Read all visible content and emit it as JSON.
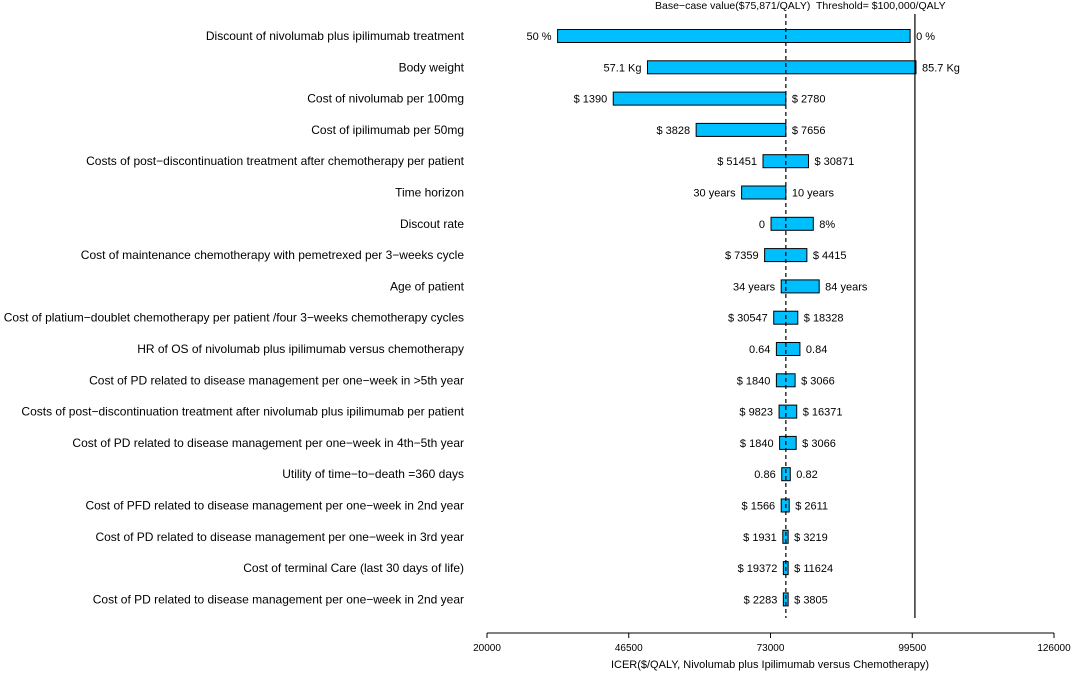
{
  "chart_data": {
    "type": "tornado",
    "xlabel": "ICER($/QALY, Nivolumab plus Ipilimumab versus Chemotherapy)",
    "xlim": [
      20000,
      126000
    ],
    "xticks": [
      20000,
      46500,
      73000,
      99500,
      126000
    ],
    "xtick_labels": [
      "20000",
      "46500",
      "73000",
      "99500",
      "126000"
    ],
    "base_case": {
      "value": 75871,
      "label": "Base−case value($75,871/QALY)"
    },
    "threshold": {
      "value": 100000,
      "label": "Threshold= $100,000/QALY"
    },
    "colors": {
      "bar": "#00BFFF",
      "bar_stroke": "#000000",
      "line": "#000000"
    },
    "parameters": [
      {
        "label": "Discount of nivolumab plus ipilimumab treatment",
        "low_value": 33200,
        "high_value": 99100,
        "left_label": "50 %",
        "right_label": "0 %"
      },
      {
        "label": "Body weight",
        "low_value": 50000,
        "high_value": 100200,
        "left_label": "57.1 Kg",
        "right_label": "85.7 Kg"
      },
      {
        "label": "Cost of nivolumab per 100mg",
        "low_value": 43600,
        "high_value": 75871,
        "left_label": "$ 1390",
        "right_label": "$ 2780"
      },
      {
        "label": "Cost of ipilimumab per 50mg",
        "low_value": 59100,
        "high_value": 75871,
        "left_label": "$ 3828",
        "right_label": "$ 7656"
      },
      {
        "label": "Costs of post−discontinuation treatment after chemotherapy per patient",
        "low_value": 71600,
        "high_value": 80100,
        "left_label": "$ 51451",
        "right_label": "$ 30871"
      },
      {
        "label": "Time horizon",
        "low_value": 67600,
        "high_value": 75871,
        "left_label": "30 years",
        "right_label": "10 years"
      },
      {
        "label": "Discout rate",
        "low_value": 73100,
        "high_value": 81000,
        "left_label": "0",
        "right_label": "8%"
      },
      {
        "label": "Cost of maintenance chemotherapy with pemetrexed per 3−weeks cycle",
        "low_value": 71900,
        "high_value": 79800,
        "left_label": "$ 7359",
        "right_label": "$ 4415"
      },
      {
        "label": "Age of patient",
        "low_value": 75000,
        "high_value": 82100,
        "left_label": "34 years",
        "right_label": "84 years"
      },
      {
        "label": "Cost of platium−doublet chemotherapy per patient /four 3−weeks chemotherapy cycles",
        "low_value": 73600,
        "high_value": 78100,
        "left_label": "$ 30547",
        "right_label": "$ 18328"
      },
      {
        "label": "HR of OS of nivolumab plus ipilimumab versus chemotherapy",
        "low_value": 74100,
        "high_value": 78500,
        "left_label": "0.64",
        "right_label": "0.84"
      },
      {
        "label": "Cost of PD related to disease management per one−week in >5th year",
        "low_value": 74100,
        "high_value": 77600,
        "left_label": "$ 1840",
        "right_label": "$ 3066"
      },
      {
        "label": "Costs of post−discontinuation treatment after nivolumab plus ipilimumab per patient",
        "low_value": 74600,
        "high_value": 77900,
        "left_label": "$ 9823",
        "right_label": "$ 16371"
      },
      {
        "label": "Cost of PD related to disease management per one−week in 4th−5th year",
        "low_value": 74700,
        "high_value": 77800,
        "left_label": "$ 1840",
        "right_label": "$ 3066"
      },
      {
        "label": "Utility of time−to−death =360 days",
        "low_value": 75100,
        "high_value": 76700,
        "left_label": "0.86",
        "right_label": "0.82"
      },
      {
        "label": "Cost of PFD related to disease management per one−week in 2nd year",
        "low_value": 75000,
        "high_value": 76500,
        "left_label": "$ 1566",
        "right_label": "$ 2611"
      },
      {
        "label": "Cost of PD related to disease management per one−week in 3rd year",
        "low_value": 75300,
        "high_value": 76300,
        "left_label": "$ 1931",
        "right_label": "$ 3219"
      },
      {
        "label": "Cost of terminal Care (last 30 days of life)",
        "low_value": 75400,
        "high_value": 76300,
        "left_label": "$ 19372",
        "right_label": "$ 11624"
      },
      {
        "label": "Cost of PD related to disease management per one−week in 2nd year",
        "low_value": 75400,
        "high_value": 76300,
        "left_label": "$ 2283",
        "right_label": "$ 3805"
      }
    ]
  }
}
